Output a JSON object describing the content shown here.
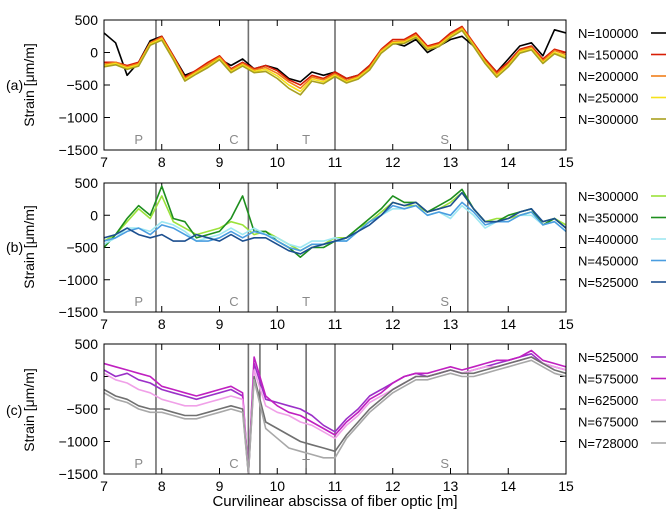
{
  "chart_data": {
    "type": "line",
    "xlabel": "Curvilinear abscissa of fiber optic [m]",
    "xlim": [
      7,
      15
    ],
    "x_ticks": [
      "7",
      "8",
      "9",
      "10",
      "11",
      "12",
      "13",
      "14",
      "15"
    ],
    "grid": false,
    "legend": "right",
    "panels": [
      {
        "id": "(a)",
        "ylabel": "Strain [μm/m]",
        "ylim": [
          -1500,
          500
        ],
        "y_ticks": [
          "500",
          "0",
          "−500",
          "−1000",
          "−1500"
        ],
        "vlines": [
          7.9,
          9.5,
          11.0,
          13.3
        ],
        "regions": [
          {
            "label": "P",
            "x": 7.6
          },
          {
            "label": "C",
            "x": 9.25
          },
          {
            "label": "T",
            "x": 10.5
          },
          {
            "label": "S",
            "x": 12.9
          }
        ],
        "x": [
          7.0,
          7.2,
          7.4,
          7.6,
          7.8,
          8.0,
          8.2,
          8.4,
          8.6,
          8.8,
          9.0,
          9.2,
          9.4,
          9.6,
          9.8,
          10.0,
          10.2,
          10.4,
          10.6,
          10.8,
          11.0,
          11.2,
          11.4,
          11.6,
          11.8,
          12.0,
          12.2,
          12.4,
          12.6,
          12.8,
          13.0,
          13.2,
          13.4,
          13.6,
          13.8,
          14.0,
          14.2,
          14.4,
          14.6,
          14.8,
          15.0
        ],
        "series": [
          {
            "name": "N=100000",
            "color": "#000000",
            "values": [
              300,
              150,
              -350,
              -150,
              180,
              250,
              -50,
              -350,
              -280,
              -200,
              -100,
              -200,
              -100,
              -250,
              -200,
              -250,
              -400,
              -450,
              -300,
              -350,
              -300,
              -400,
              -350,
              -200,
              0,
              150,
              100,
              200,
              0,
              100,
              200,
              250,
              100,
              -100,
              -300,
              -100,
              100,
              150,
              -50,
              350,
              300
            ]
          },
          {
            "name": "N=150000",
            "color": "#d81e05",
            "values": [
              -150,
              -150,
              -200,
              -150,
              150,
              250,
              -50,
              -380,
              -270,
              -150,
              -50,
              -250,
              -150,
              -250,
              -200,
              -280,
              -420,
              -500,
              -350,
              -400,
              -300,
              -400,
              -350,
              -200,
              50,
              200,
              200,
              300,
              100,
              150,
              300,
              400,
              150,
              -100,
              -300,
              -150,
              50,
              100,
              -100,
              50,
              0
            ]
          },
          {
            "name": "N=200000",
            "color": "#f07e1b",
            "values": [
              -180,
              -150,
              -220,
              -170,
              150,
              230,
              -70,
              -400,
              -290,
              -180,
              -70,
              -270,
              -170,
              -270,
              -230,
              -320,
              -450,
              -550,
              -380,
              -420,
              -330,
              -430,
              -370,
              -230,
              30,
              170,
              180,
              270,
              80,
              130,
              270,
              380,
              130,
              -130,
              -330,
              -180,
              30,
              80,
              -130,
              30,
              -30
            ]
          },
          {
            "name": "N=250000",
            "color": "#f5e21b",
            "values": [
              -200,
              -170,
              -240,
              -190,
              130,
              210,
              -90,
              -420,
              -310,
              -210,
              -90,
              -290,
              -190,
              -290,
              -260,
              -360,
              -500,
              -600,
              -410,
              -450,
              -350,
              -450,
              -390,
              -250,
              10,
              150,
              160,
              250,
              60,
              110,
              250,
              360,
              110,
              -150,
              -360,
              -200,
              10,
              60,
              -150,
              0,
              -60
            ]
          },
          {
            "name": "N=300000",
            "color": "#a8a020",
            "values": [
              -220,
              -190,
              -260,
              -210,
              110,
              190,
              -110,
              -440,
              -330,
              -230,
              -110,
              -310,
              -210,
              -310,
              -290,
              -400,
              -550,
              -650,
              -440,
              -480,
              -370,
              -470,
              -410,
              -270,
              -10,
              130,
              140,
              230,
              40,
              90,
              230,
              340,
              90,
              -170,
              -380,
              -220,
              -10,
              40,
              -170,
              -20,
              -90
            ]
          }
        ]
      },
      {
        "id": "(b)",
        "ylabel": "Strain [μm/m]",
        "ylim": [
          -1500,
          500
        ],
        "y_ticks": [
          "500",
          "0",
          "−500",
          "−1000",
          "−1500"
        ],
        "vlines": [
          7.9,
          9.5,
          11.0,
          13.3
        ],
        "regions": [
          {
            "label": "P",
            "x": 7.6
          },
          {
            "label": "C",
            "x": 9.25
          },
          {
            "label": "T",
            "x": 10.5
          },
          {
            "label": "S",
            "x": 12.9
          }
        ],
        "x": [
          7.0,
          7.2,
          7.4,
          7.6,
          7.8,
          8.0,
          8.2,
          8.4,
          8.6,
          8.8,
          9.0,
          9.2,
          9.4,
          9.6,
          9.8,
          10.0,
          10.2,
          10.4,
          10.6,
          10.8,
          11.0,
          11.2,
          11.4,
          11.6,
          11.8,
          12.0,
          12.2,
          12.4,
          12.6,
          12.8,
          13.0,
          13.2,
          13.4,
          13.6,
          13.8,
          14.0,
          14.2,
          14.4,
          14.6,
          14.8,
          15.0
        ],
        "series": [
          {
            "name": "N=300000",
            "color": "#9be23a",
            "values": [
              -400,
              -300,
              -100,
              100,
              -50,
              300,
              -100,
              -200,
              -300,
              -250,
              -200,
              -100,
              -150,
              -300,
              -250,
              -350,
              -450,
              -550,
              -450,
              -450,
              -350,
              -350,
              -200,
              -100,
              50,
              200,
              150,
              150,
              50,
              100,
              200,
              350,
              100,
              -100,
              -50,
              -50,
              0,
              50,
              -100,
              -50,
              -150
            ]
          },
          {
            "name": "N=350000",
            "color": "#1e8f1e",
            "values": [
              -500,
              -300,
              -50,
              150,
              0,
              450,
              -50,
              -100,
              -350,
              -300,
              -250,
              -50,
              300,
              -250,
              -250,
              -400,
              -500,
              -650,
              -500,
              -500,
              -400,
              -350,
              -200,
              -50,
              100,
              300,
              200,
              200,
              50,
              150,
              250,
              400,
              100,
              -100,
              -100,
              0,
              50,
              100,
              -150,
              -50,
              -200
            ]
          },
          {
            "name": "N=400000",
            "color": "#9ee8f2",
            "values": [
              -450,
              -350,
              -200,
              -200,
              -250,
              -100,
              -150,
              -250,
              -400,
              -350,
              -300,
              -200,
              -300,
              -200,
              -300,
              -350,
              -450,
              -500,
              -400,
              -400,
              -350,
              -400,
              -250,
              -100,
              0,
              100,
              100,
              150,
              0,
              50,
              -50,
              150,
              0,
              -200,
              -100,
              -100,
              0,
              0,
              -150,
              -100,
              -250
            ]
          },
          {
            "name": "N=450000",
            "color": "#4a9de0",
            "values": [
              -400,
              -350,
              -250,
              -200,
              -300,
              -150,
              -200,
              -300,
              -400,
              -400,
              -350,
              -250,
              -350,
              -250,
              -300,
              -400,
              -500,
              -550,
              -450,
              -450,
              -400,
              -400,
              -250,
              -100,
              0,
              150,
              100,
              150,
              0,
              50,
              0,
              200,
              50,
              -150,
              -100,
              -100,
              0,
              50,
              -150,
              -100,
              -250
            ]
          },
          {
            "name": "N=525000",
            "color": "#1c4f8f",
            "values": [
              -350,
              -300,
              -200,
              -300,
              -350,
              -300,
              -400,
              -400,
              -300,
              -350,
              -400,
              -300,
              -400,
              -350,
              -350,
              -450,
              -550,
              -600,
              -500,
              -450,
              -400,
              -350,
              -250,
              -150,
              0,
              200,
              150,
              200,
              50,
              100,
              150,
              350,
              100,
              -100,
              -100,
              -50,
              50,
              100,
              -100,
              -50,
              -200
            ]
          }
        ]
      },
      {
        "id": "(c)",
        "ylabel": "Strain [μm/m]",
        "ylim": [
          -1500,
          500
        ],
        "y_ticks": [
          "500",
          "0",
          "−500",
          "−1000",
          "−1500"
        ],
        "vlines": [
          7.9,
          9.5,
          9.7,
          10.5,
          11.0,
          13.3
        ],
        "regions": [
          {
            "label": "P",
            "x": 7.6
          },
          {
            "label": "C",
            "x": 9.25
          },
          {
            "label": "T",
            "x": 10.5
          },
          {
            "label": "S",
            "x": 12.9
          }
        ],
        "x": [
          7.0,
          7.2,
          7.4,
          7.6,
          7.8,
          8.0,
          8.2,
          8.4,
          8.6,
          8.8,
          9.0,
          9.2,
          9.4,
          9.5,
          9.6,
          9.8,
          10.0,
          10.2,
          10.4,
          10.6,
          10.8,
          11.0,
          11.2,
          11.4,
          11.6,
          11.8,
          12.0,
          12.2,
          12.4,
          12.6,
          12.8,
          13.0,
          13.2,
          13.4,
          13.6,
          13.8,
          14.0,
          14.2,
          14.4,
          14.6,
          14.8,
          15.0
        ],
        "series": [
          {
            "name": "N=525000",
            "color": "#9b30c8",
            "values": [
              100,
              0,
              50,
              -50,
              -100,
              -200,
              -250,
              -300,
              -350,
              -300,
              -250,
              -200,
              -300,
              -1500,
              200,
              -350,
              -400,
              -450,
              -500,
              -600,
              -750,
              -850,
              -650,
              -500,
              -300,
              -200,
              -100,
              0,
              50,
              0,
              50,
              100,
              50,
              100,
              150,
              200,
              250,
              300,
              350,
              200,
              150,
              100
            ]
          },
          {
            "name": "N=575000",
            "color": "#c020c0",
            "values": [
              200,
              150,
              100,
              50,
              0,
              -150,
              -200,
              -250,
              -300,
              -250,
              -200,
              -150,
              -250,
              -1500,
              300,
              -300,
              -450,
              -550,
              -600,
              -700,
              -800,
              -900,
              -700,
              -550,
              -350,
              -250,
              -100,
              0,
              50,
              50,
              100,
              150,
              100,
              150,
              200,
              250,
              250,
              300,
              400,
              250,
              200,
              150
            ]
          },
          {
            "name": "N=625000",
            "color": "#f0a0e8",
            "values": [
              50,
              -50,
              -100,
              -200,
              -250,
              -350,
              -400,
              -450,
              -450,
              -400,
              -350,
              -300,
              -350,
              -1500,
              100,
              -450,
              -550,
              -600,
              -700,
              -750,
              -850,
              -950,
              -750,
              -600,
              -400,
              -300,
              -200,
              -100,
              0,
              0,
              50,
              100,
              50,
              100,
              150,
              150,
              200,
              250,
              300,
              200,
              150,
              100
            ]
          },
          {
            "name": "N=675000",
            "color": "#707070",
            "values": [
              -200,
              -300,
              -350,
              -450,
              -500,
              -500,
              -550,
              -600,
              -600,
              -550,
              -500,
              -450,
              -500,
              -1500,
              0,
              -700,
              -800,
              -900,
              -1000,
              -1050,
              -1100,
              -1150,
              -900,
              -700,
              -500,
              -350,
              -200,
              -100,
              0,
              0,
              50,
              100,
              50,
              50,
              100,
              150,
              200,
              250,
              300,
              200,
              100,
              50
            ]
          },
          {
            "name": "N=728000",
            "color": "#a8a8a8",
            "values": [
              -250,
              -350,
              -400,
              -500,
              -550,
              -550,
              -600,
              -650,
              -650,
              -600,
              -550,
              -500,
              -550,
              -1500,
              -50,
              -800,
              -950,
              -1100,
              -1150,
              -1200,
              -1250,
              -1250,
              -950,
              -750,
              -550,
              -400,
              -250,
              -150,
              -50,
              -50,
              0,
              50,
              0,
              0,
              50,
              100,
              150,
              200,
              250,
              150,
              50,
              0
            ]
          }
        ]
      }
    ]
  }
}
